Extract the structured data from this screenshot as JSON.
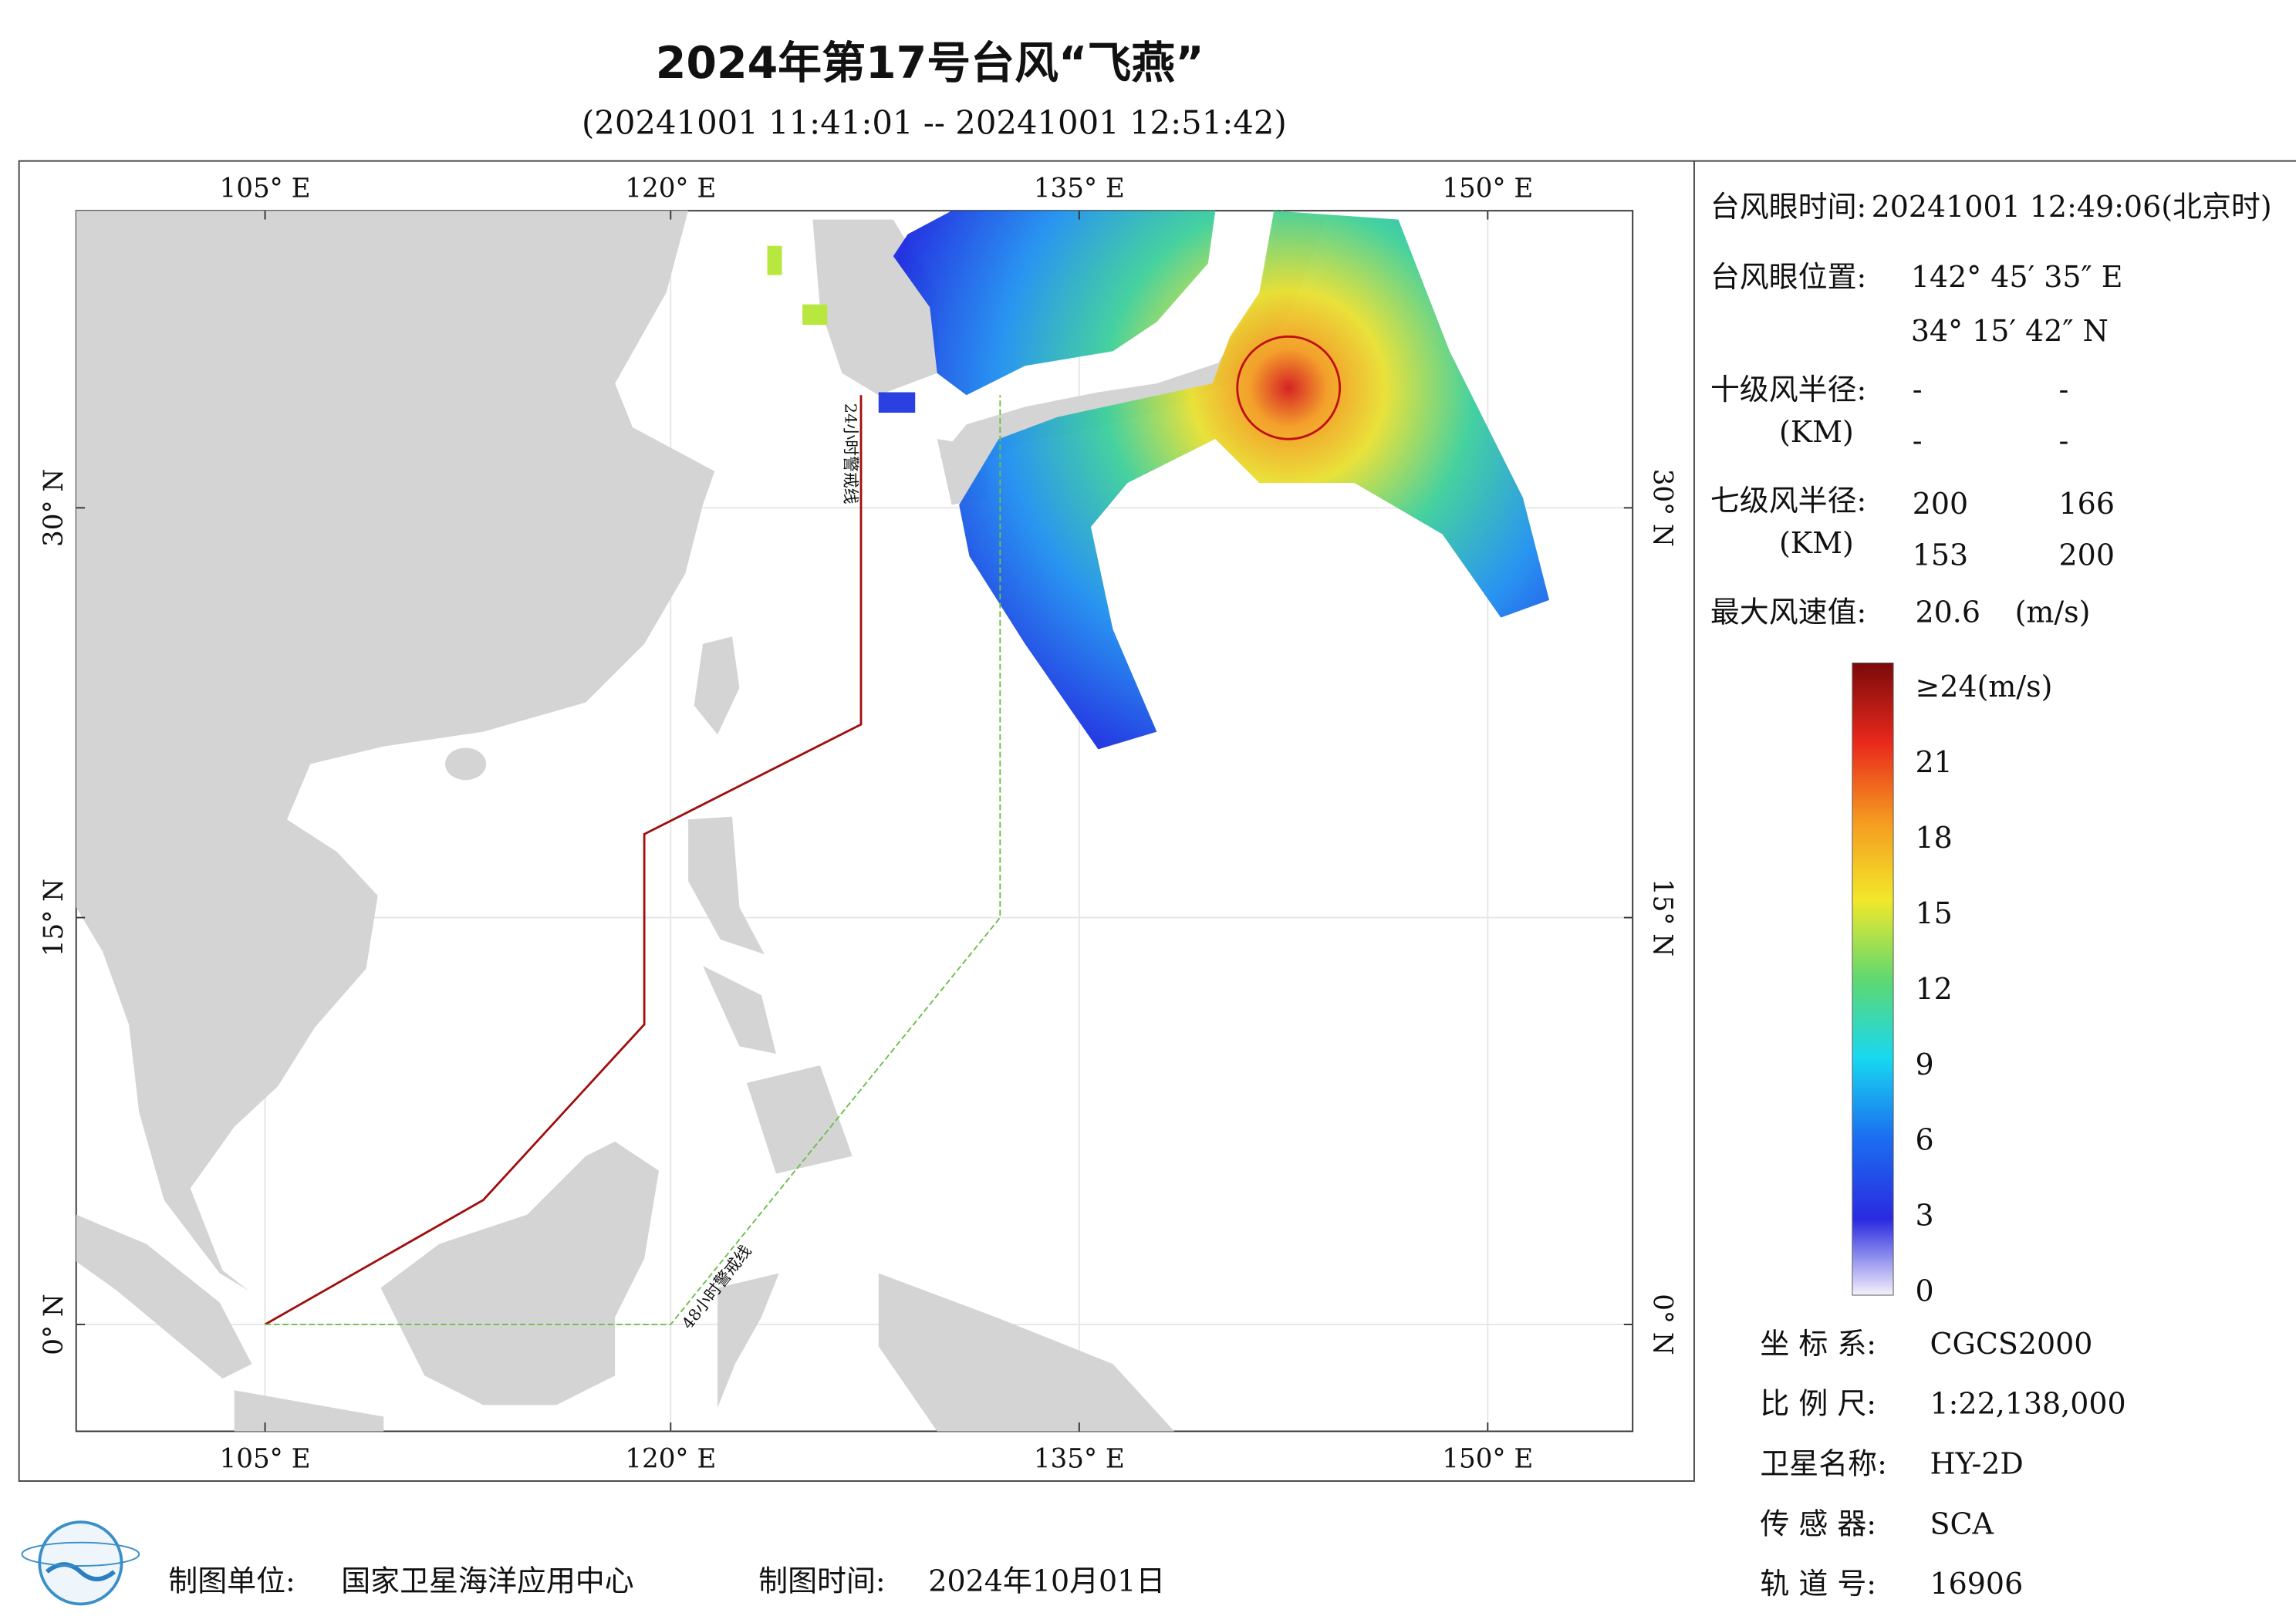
{
  "title": "2024年第17号台风“飞燕”",
  "subtitle": "(20241001 11:41:01 -- 20241001 12:51:42)",
  "map": {
    "lon_labels": [
      "105° E",
      "120° E",
      "135° E",
      "150° E"
    ],
    "lat_labels": [
      "0° N",
      "15° N",
      "30° N"
    ],
    "warning_lines": [
      "24小时警戒线",
      "48小时警戒线"
    ]
  },
  "info": {
    "eye_time": {
      "label": "台风眼时间:",
      "value": "20241001 12:49:06(北京时)"
    },
    "eye_position": {
      "label": "台风眼位置:",
      "lon": "142° 45′ 35″ E",
      "lat": "34° 15′ 42″ N"
    },
    "r10": {
      "label": "十级风半径:",
      "unit": "(KM)",
      "values": [
        "-",
        "-",
        "-",
        "-"
      ]
    },
    "r7": {
      "label": "七级风半径:",
      "unit": "(KM)",
      "values": [
        "200",
        "166",
        "153",
        "200"
      ]
    },
    "max_wind": {
      "label": "最大风速值:",
      "value": "20.6",
      "unit": "(m/s)"
    }
  },
  "colorbar": {
    "labels": [
      "0",
      "3",
      "6",
      "9",
      "12",
      "15",
      "18",
      "21",
      "≥24(m/s)"
    ]
  },
  "meta": [
    {
      "label": "坐 标 系:",
      "value": "CGCS2000"
    },
    {
      "label": "比 例 尺:",
      "value": "1:22,138,000"
    },
    {
      "label": "卫星名称:",
      "value": "HY-2D"
    },
    {
      "label": "传 感 器:",
      "value": "SCA"
    },
    {
      "label": "轨 道 号:",
      "value": "16906"
    }
  ],
  "footer": {
    "unit_label": "制图单位:",
    "unit": "国家卫星海洋应用中心",
    "time_label": "制图时间:",
    "time": "2024年10月01日"
  }
}
